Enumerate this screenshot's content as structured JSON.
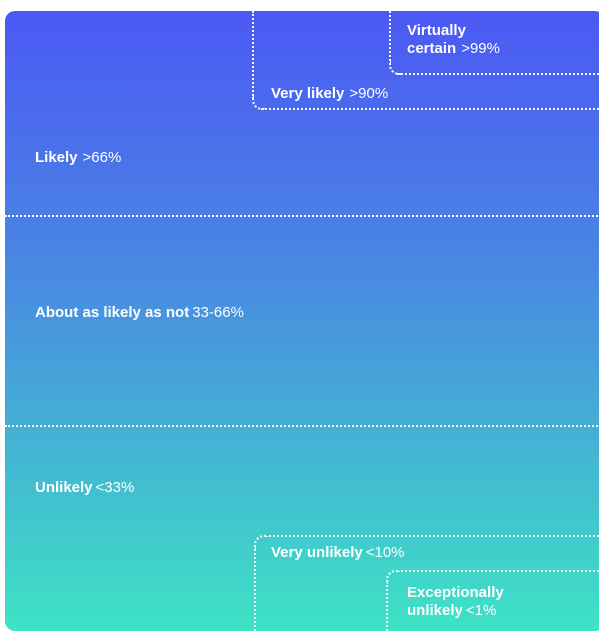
{
  "scale": {
    "virtually_certain": {
      "label": "Virtually certain",
      "label_line1": "Virtually",
      "label_line2": "certain",
      "value": ">99%"
    },
    "very_likely": {
      "label": "Very likely",
      "value": ">90%"
    },
    "likely": {
      "label": "Likely",
      "value": ">66%"
    },
    "about_as_likely": {
      "label": "About as likely as not",
      "value": "33-66%"
    },
    "unlikely": {
      "label": "Unlikely",
      "value": "<33%"
    },
    "very_unlikely": {
      "label": "Very unlikely",
      "value": "<10%"
    },
    "exceptionally_unlikely": {
      "label": "Exceptionally unlikely",
      "label_line1": "Exceptionally",
      "label_line2": "unlikely",
      "value": "<1%"
    }
  },
  "colors": {
    "top": "#4b58f4",
    "middle": "#4a86e3",
    "bottom": "#3ee3c5",
    "line": "#ffffff"
  }
}
